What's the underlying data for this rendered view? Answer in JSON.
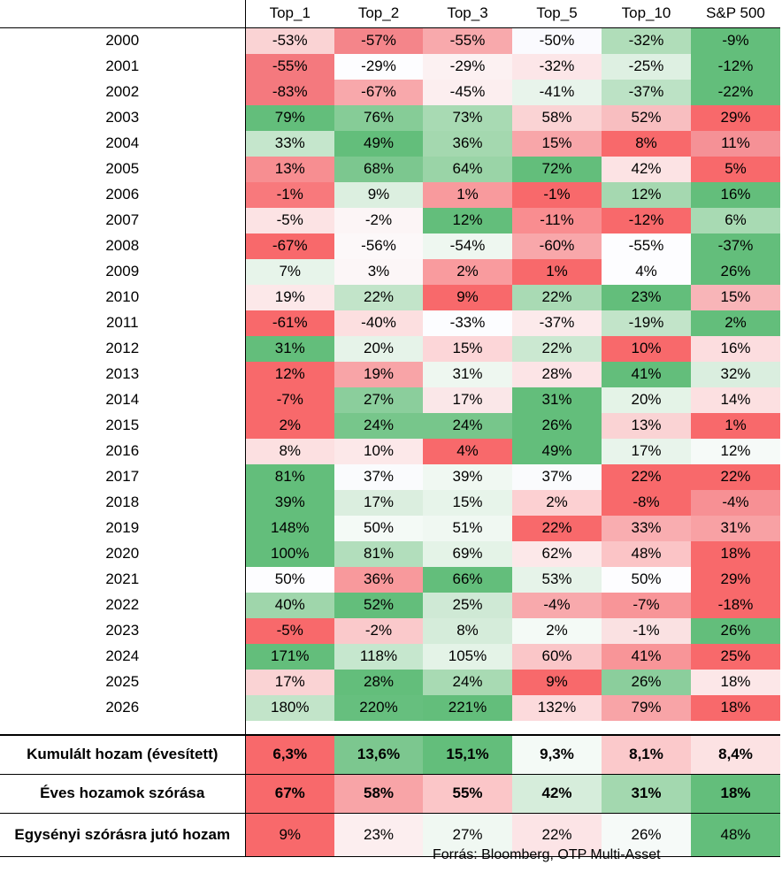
{
  "headers": [
    "Top_1",
    "Top_2",
    "Top_3",
    "Top_5",
    "Top_10",
    "S&P 500"
  ],
  "rows": [
    {
      "year": "2000",
      "values": [
        "-53%",
        "-57%",
        "-55%",
        "-50%",
        "-32%",
        "-9%"
      ],
      "colors": [
        "#FAD3D4",
        "#F4858A",
        "#F8A9AC",
        "#FAFAFE",
        "#B0DDB9",
        "#63BE7B"
      ]
    },
    {
      "year": "2001",
      "values": [
        "-55%",
        "-29%",
        "-29%",
        "-32%",
        "-25%",
        "-12%"
      ],
      "colors": [
        "#F4797E",
        "#FDFDFF",
        "#FCF1F2",
        "#FCE6E8",
        "#DEF0E2",
        "#63BE7B"
      ]
    },
    {
      "year": "2002",
      "values": [
        "-83%",
        "-67%",
        "-45%",
        "-41%",
        "-37%",
        "-22%"
      ],
      "colors": [
        "#F4797E",
        "#F8A8AB",
        "#FCEEEF",
        "#E8F4EB",
        "#BCE2C5",
        "#63BE7B"
      ]
    },
    {
      "year": "2003",
      "values": [
        "79%",
        "76%",
        "73%",
        "58%",
        "52%",
        "29%"
      ],
      "colors": [
        "#63BE7B",
        "#86CC97",
        "#A8DAB3",
        "#FAD3D4",
        "#F8BEC0",
        "#F8696B"
      ]
    },
    {
      "year": "2004",
      "values": [
        "33%",
        "49%",
        "36%",
        "15%",
        "8%",
        "11%"
      ],
      "colors": [
        "#C5E6CC",
        "#63BE7B",
        "#A4D8AF",
        "#F8A6A9",
        "#F8696B",
        "#F59196"
      ]
    },
    {
      "year": "2005",
      "values": [
        "13%",
        "68%",
        "64%",
        "72%",
        "42%",
        "5%"
      ],
      "colors": [
        "#F78E91",
        "#7CC78F",
        "#9AD4A7",
        "#63BE7B",
        "#FCE3E4",
        "#F8696B"
      ]
    },
    {
      "year": "2006",
      "values": [
        "-1%",
        "9%",
        "1%",
        "-1%",
        "12%",
        "16%"
      ],
      "colors": [
        "#F8797C",
        "#DCEFE0",
        "#F89A9D",
        "#F8696B",
        "#A5D8B0",
        "#63BE7B"
      ]
    },
    {
      "year": "2007",
      "values": [
        "-5%",
        "-2%",
        "12%",
        "-11%",
        "-12%",
        "6%"
      ],
      "colors": [
        "#FCE3E4",
        "#FCF5F6",
        "#63BE7B",
        "#F98D90",
        "#F8696B",
        "#A8DAB3"
      ]
    },
    {
      "year": "2008",
      "values": [
        "-67%",
        "-56%",
        "-54%",
        "-60%",
        "-55%",
        "-37%"
      ],
      "colors": [
        "#F8696B",
        "#FCF8F9",
        "#EEF7F0",
        "#F8A7AA",
        "#FDFDFF",
        "#63BE7B"
      ]
    },
    {
      "year": "2009",
      "values": [
        "7%",
        "3%",
        "2%",
        "1%",
        "4%",
        "26%"
      ],
      "colors": [
        "#E7F4EA",
        "#FCF6F7",
        "#F99B9E",
        "#F8696B",
        "#FDFDFF",
        "#63BE7B"
      ]
    },
    {
      "year": "2010",
      "values": [
        "19%",
        "22%",
        "9%",
        "22%",
        "23%",
        "15%"
      ],
      "colors": [
        "#FCE8E9",
        "#C2E4C9",
        "#F8696B",
        "#A9DAB4",
        "#63BE7B",
        "#F8B5B8"
      ]
    },
    {
      "year": "2011",
      "values": [
        "-61%",
        "-40%",
        "-33%",
        "-37%",
        "-19%",
        "2%"
      ],
      "colors": [
        "#F8696B",
        "#FCDFE0",
        "#FCFDFF",
        "#FCEAEB",
        "#C2E4C9",
        "#63BE7B"
      ]
    },
    {
      "year": "2012",
      "values": [
        "31%",
        "20%",
        "15%",
        "22%",
        "10%",
        "16%"
      ],
      "colors": [
        "#63BE7B",
        "#E6F3E9",
        "#FCD6D8",
        "#CBE8D1",
        "#F8696B",
        "#FCDDDF"
      ]
    },
    {
      "year": "2013",
      "values": [
        "12%",
        "19%",
        "31%",
        "28%",
        "41%",
        "32%"
      ],
      "colors": [
        "#F8696B",
        "#F8A4A7",
        "#EEF7F0",
        "#FCE4E6",
        "#63BE7B",
        "#DAEEDF"
      ]
    },
    {
      "year": "2014",
      "values": [
        "-7%",
        "27%",
        "17%",
        "31%",
        "20%",
        "14%"
      ],
      "colors": [
        "#F8696B",
        "#8BCE9C",
        "#FAE7E8",
        "#63BE7B",
        "#E4F3E7",
        "#FCE0E1"
      ]
    },
    {
      "year": "2015",
      "values": [
        "2%",
        "24%",
        "24%",
        "26%",
        "13%",
        "1%"
      ],
      "colors": [
        "#F8696B",
        "#77C68B",
        "#77C68B",
        "#63BE7B",
        "#FAD3D4",
        "#F8696B"
      ]
    },
    {
      "year": "2016",
      "values": [
        "8%",
        "10%",
        "4%",
        "49%",
        "17%",
        "12%"
      ],
      "colors": [
        "#FCE0E1",
        "#FCE8E9",
        "#F8696B",
        "#63BE7B",
        "#E8F4EB",
        "#F6FAF8"
      ]
    },
    {
      "year": "2017",
      "values": [
        "81%",
        "37%",
        "39%",
        "37%",
        "22%",
        "22%"
      ],
      "colors": [
        "#63BE7B",
        "#FAFBFD",
        "#F0F8F2",
        "#FAFBFD",
        "#F8696B",
        "#F8696B"
      ]
    },
    {
      "year": "2018",
      "values": [
        "39%",
        "17%",
        "15%",
        "2%",
        "-8%",
        "-4%"
      ],
      "colors": [
        "#63BE7B",
        "#DBEEDF",
        "#E7F4EA",
        "#FCD0D2",
        "#F8696B",
        "#F79094"
      ]
    },
    {
      "year": "2019",
      "values": [
        "148%",
        "50%",
        "51%",
        "22%",
        "33%",
        "31%"
      ],
      "colors": [
        "#63BE7B",
        "#F4FAF6",
        "#F0F8F2",
        "#F8696B",
        "#F9ADB0",
        "#F8A1A4"
      ]
    },
    {
      "year": "2020",
      "values": [
        "100%",
        "81%",
        "69%",
        "62%",
        "48%",
        "18%"
      ],
      "colors": [
        "#63BE7B",
        "#B2DEBC",
        "#E4F3E7",
        "#FCE8E9",
        "#FBC4C6",
        "#F8696B"
      ]
    },
    {
      "year": "2021",
      "values": [
        "50%",
        "36%",
        "66%",
        "53%",
        "50%",
        "29%"
      ],
      "colors": [
        "#FDFDFF",
        "#F8999C",
        "#63BE7B",
        "#E6F3E9",
        "#FDFDFF",
        "#F8696B"
      ]
    },
    {
      "year": "2022",
      "values": [
        "40%",
        "52%",
        "25%",
        "-4%",
        "-7%",
        "-18%"
      ],
      "colors": [
        "#9FD6AB",
        "#63BE7B",
        "#CFE9D5",
        "#F8A9AC",
        "#F89598",
        "#F8696B"
      ]
    },
    {
      "year": "2023",
      "values": [
        "-5%",
        "-2%",
        "8%",
        "2%",
        "-1%",
        "26%"
      ],
      "colors": [
        "#F8696B",
        "#FAC9CB",
        "#D5ECDA",
        "#F4FAF6",
        "#FAE1E2",
        "#63BE7B"
      ]
    },
    {
      "year": "2024",
      "values": [
        "171%",
        "118%",
        "105%",
        "60%",
        "41%",
        "25%"
      ],
      "colors": [
        "#63BE7B",
        "#C6E7CE",
        "#E4F3E7",
        "#FAC6C8",
        "#F89598",
        "#F8696B"
      ]
    },
    {
      "year": "2025",
      "values": [
        "17%",
        "28%",
        "24%",
        "9%",
        "26%",
        "18%"
      ],
      "colors": [
        "#FAD3D4",
        "#63BE7B",
        "#A8DAB3",
        "#F8696B",
        "#8BCE9C",
        "#FCE7E8"
      ]
    },
    {
      "year": "2026",
      "values": [
        "180%",
        "220%",
        "221%",
        "132%",
        "79%",
        "18%"
      ],
      "colors": [
        "#C2E4C9",
        "#66BF7E",
        "#63BE7B",
        "#FCDADC",
        "#F8A4A7",
        "#F8696B"
      ]
    }
  ],
  "summary": [
    {
      "label": "Kumulált hozam (évesített)",
      "values": [
        "6,3%",
        "13,6%",
        "15,1%",
        "9,3%",
        "8,1%",
        "8,4%"
      ],
      "colors": [
        "#F8696B",
        "#7CC78F",
        "#63BE7B",
        "#F4FAF6",
        "#FBC9CB",
        "#FCE2E3"
      ]
    },
    {
      "label": "Éves hozamok szórása",
      "values": [
        "67%",
        "58%",
        "55%",
        "42%",
        "31%",
        "18%"
      ],
      "colors": [
        "#F8696B",
        "#F8A4A7",
        "#FBC6C8",
        "#D6EDDB",
        "#A3D8AF",
        "#63BE7B"
      ]
    },
    {
      "label": "Egysényi szórásra jutó hozam",
      "values": [
        "9%",
        "23%",
        "27%",
        "22%",
        "26%",
        "48%"
      ],
      "colors": [
        "#F8696B",
        "#FCEEEF",
        "#F0F8F2",
        "#FCE4E6",
        "#F6FAF8",
        "#63BE7B"
      ]
    }
  ],
  "source": "Forrás: Bloomberg, OTP Multi-Asset"
}
